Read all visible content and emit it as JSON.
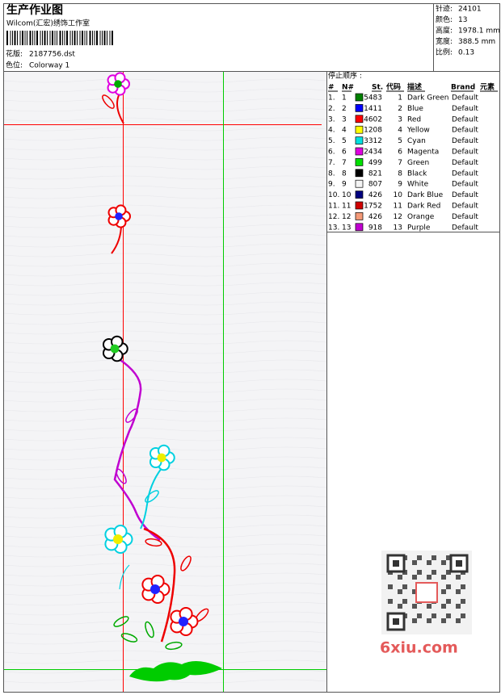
{
  "header": {
    "title": "生产作业图",
    "studio": "Wilcom(汇宏)绣饰工作室",
    "design_label": "花版:",
    "design_file": "2187756.dst",
    "colorway_label": "色位:",
    "colorway": "Colorway 1"
  },
  "stats": [
    {
      "label": "针迹:",
      "value": "24101"
    },
    {
      "label": "颜色:",
      "value": "13"
    },
    {
      "label": "高度:",
      "value": "1978.1 mm"
    },
    {
      "label": "宽度:",
      "value": "388.5 mm"
    },
    {
      "label": "比例:",
      "value": "0.13"
    }
  ],
  "table": {
    "title": "停止顺序 :",
    "columns": [
      "#",
      "N#",
      "St.",
      "代码",
      "描述",
      "Brand",
      "元素"
    ],
    "rows": [
      {
        "no": "1.",
        "n": 1,
        "color": "#008000",
        "st": 5483,
        "code": 1,
        "desc": "Dark Green",
        "brand": "Default"
      },
      {
        "no": "2.",
        "n": 2,
        "color": "#0000ff",
        "st": 1411,
        "code": 2,
        "desc": "Blue",
        "brand": "Default"
      },
      {
        "no": "3.",
        "n": 3,
        "color": "#ff0000",
        "st": 4602,
        "code": 3,
        "desc": "Red",
        "brand": "Default"
      },
      {
        "no": "4.",
        "n": 4,
        "color": "#ffff00",
        "st": 1208,
        "code": 4,
        "desc": "Yellow",
        "brand": "Default"
      },
      {
        "no": "5.",
        "n": 5,
        "color": "#00e0e0",
        "st": 3312,
        "code": 5,
        "desc": "Cyan",
        "brand": "Default"
      },
      {
        "no": "6.",
        "n": 6,
        "color": "#e000e0",
        "st": 2434,
        "code": 6,
        "desc": "Magenta",
        "brand": "Default"
      },
      {
        "no": "7.",
        "n": 7,
        "color": "#00e000",
        "st": 499,
        "code": 7,
        "desc": "Green",
        "brand": "Default"
      },
      {
        "no": "8.",
        "n": 8,
        "color": "#000000",
        "st": 821,
        "code": 8,
        "desc": "Black",
        "brand": "Default"
      },
      {
        "no": "9.",
        "n": 9,
        "color": "#f4f4f4",
        "st": 807,
        "code": 9,
        "desc": "White",
        "brand": "Default"
      },
      {
        "no": "10.",
        "n": 10,
        "color": "#00007f",
        "st": 426,
        "code": 10,
        "desc": "Dark Blue",
        "brand": "Default"
      },
      {
        "no": "11.",
        "n": 11,
        "color": "#d00000",
        "st": 1752,
        "code": 11,
        "desc": "Dark Red",
        "brand": "Default"
      },
      {
        "no": "12.",
        "n": 12,
        "color": "#f49a78",
        "st": 426,
        "code": 12,
        "desc": "Orange",
        "brand": "Default"
      },
      {
        "no": "13.",
        "n": 13,
        "color": "#c000d0",
        "st": 918,
        "code": 13,
        "desc": "Purple",
        "brand": "Default"
      }
    ]
  },
  "watermark": "6xiu.com"
}
